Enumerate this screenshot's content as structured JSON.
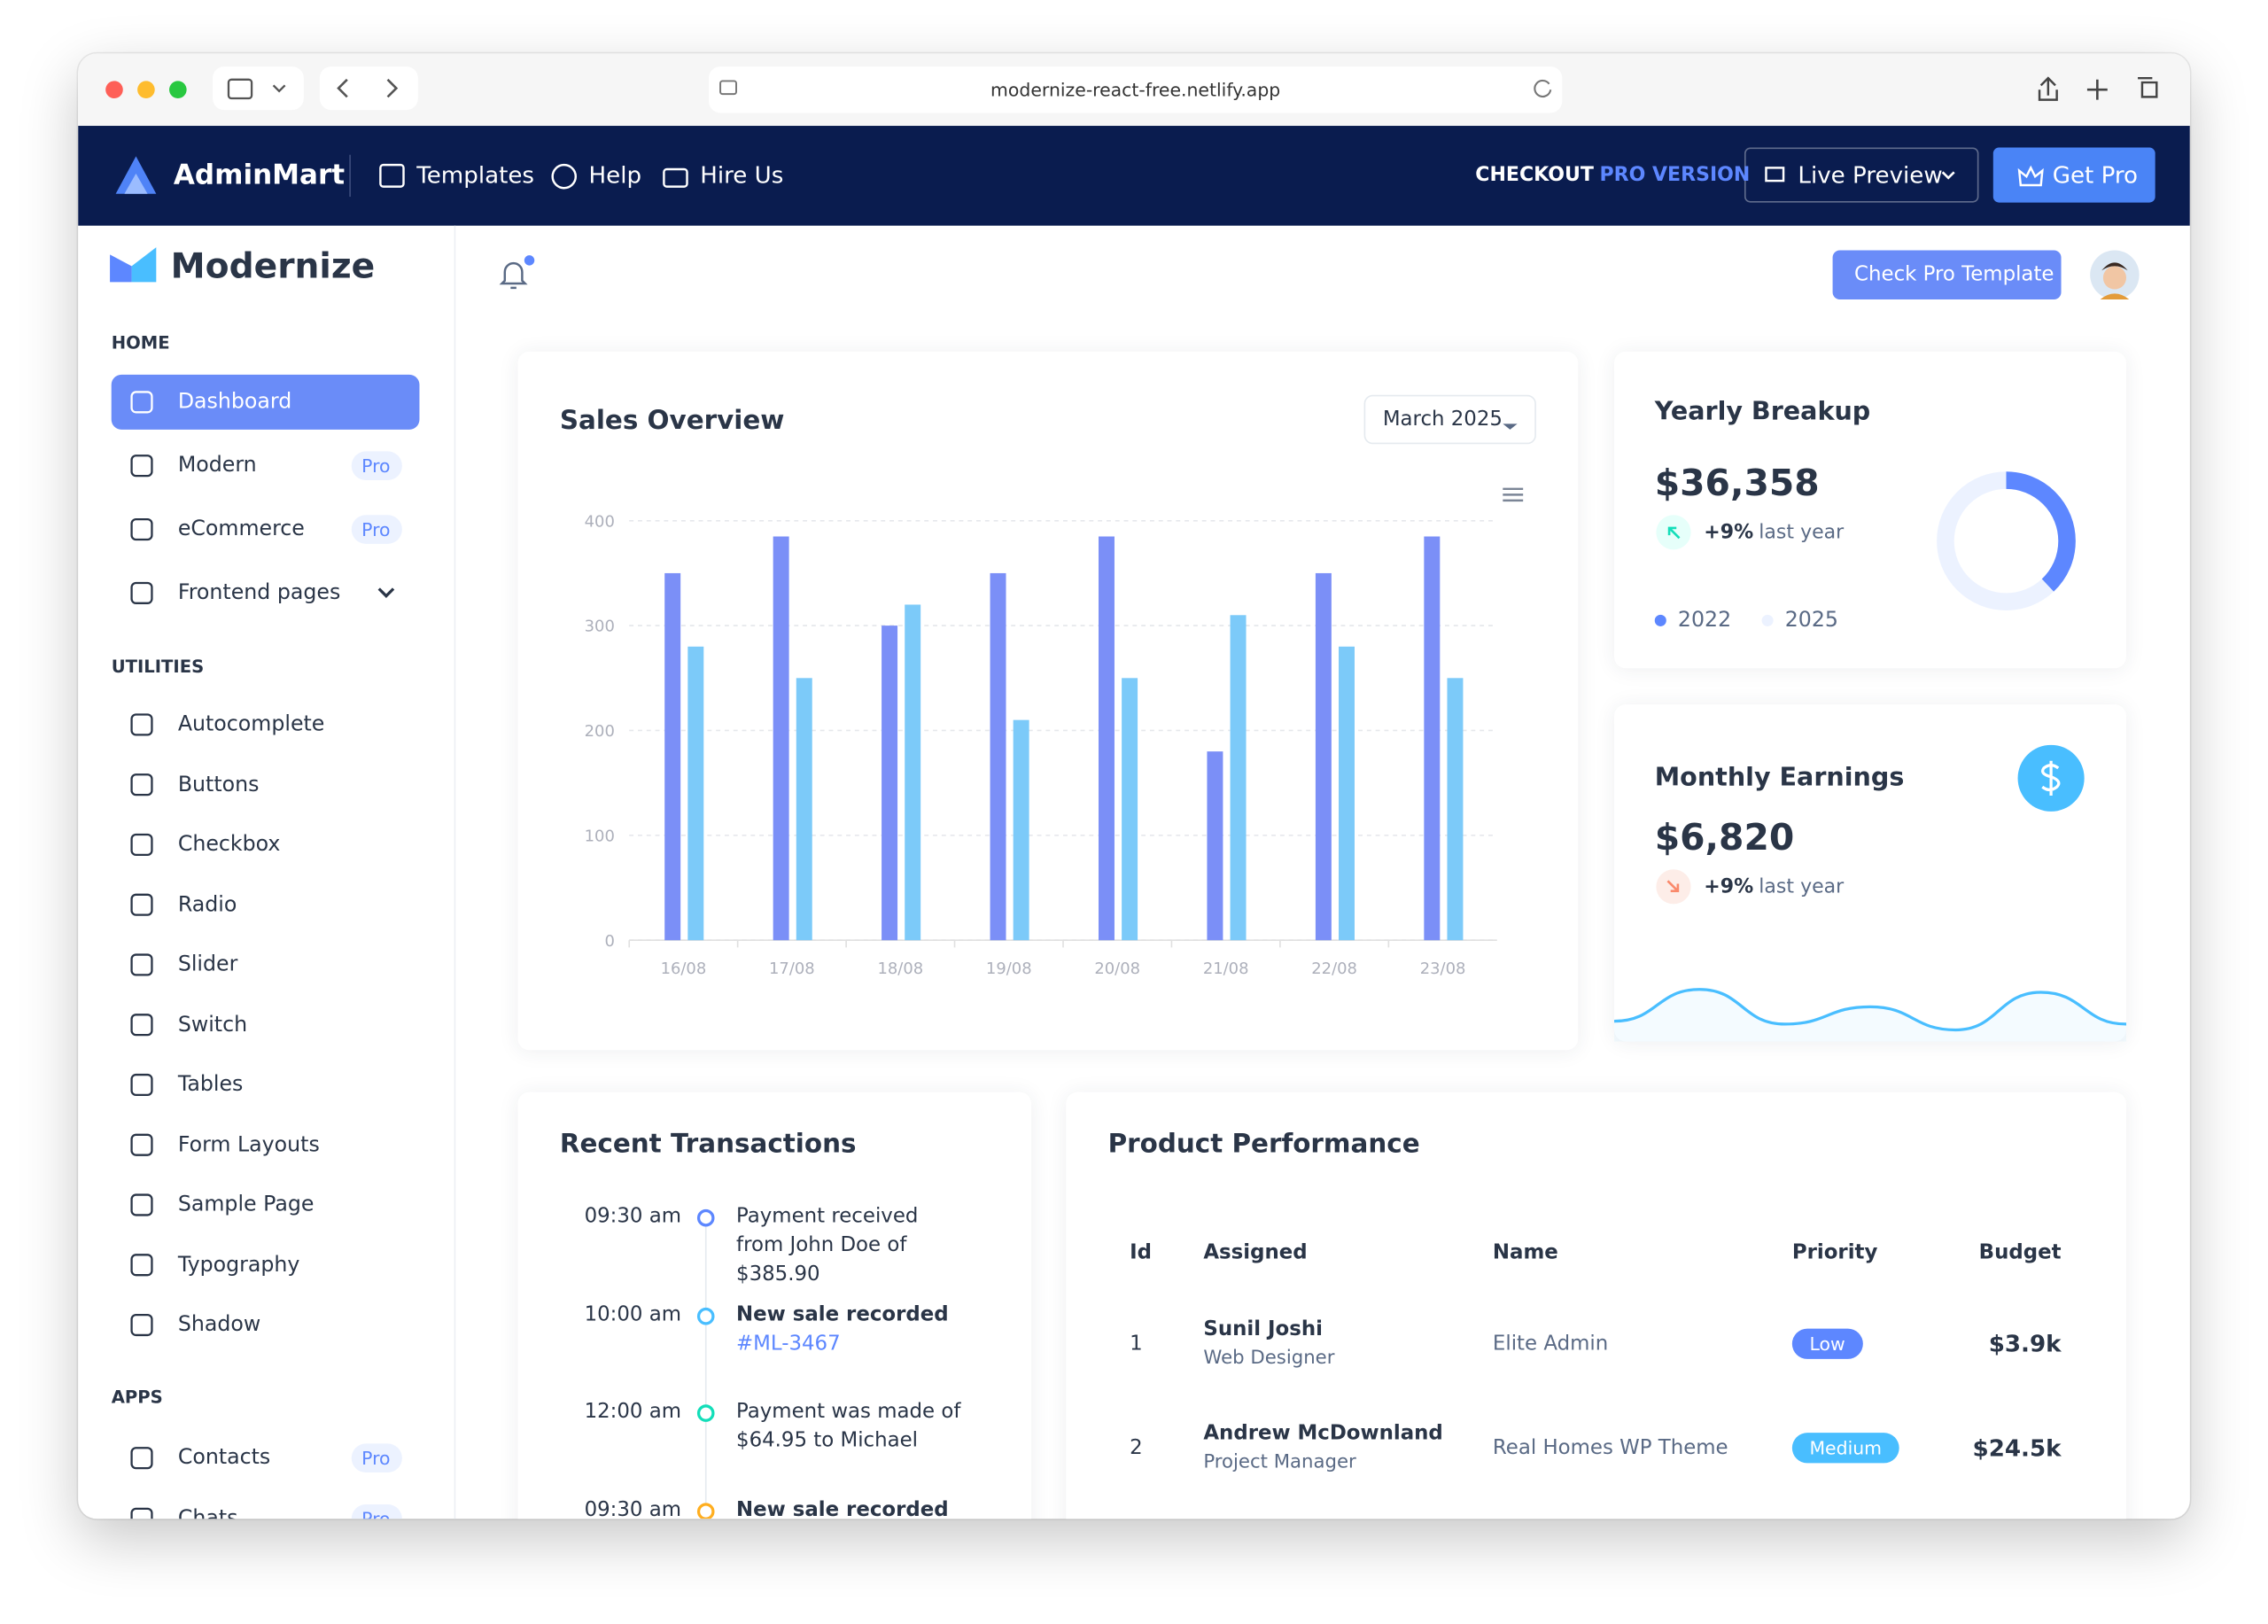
{
  "browser": {
    "url": "modernize-react-free.netlify.app"
  },
  "topbar": {
    "brand": "AdminMart",
    "nav": [
      "Templates",
      "Help",
      "Hire Us"
    ],
    "checkout": "CHECKOUT",
    "pro_version": "PRO VERSION",
    "live_preview": "Live Preview",
    "get_pro": "Get Pro"
  },
  "sidebar": {
    "brand": "Modernize",
    "sections": [
      {
        "title": "HOME",
        "items": [
          {
            "label": "Dashboard"
          },
          {
            "label": "Modern",
            "badge": "Pro"
          },
          {
            "label": "eCommerce",
            "badge": "Pro"
          },
          {
            "label": "Frontend pages"
          }
        ]
      },
      {
        "title": "UTILITIES",
        "items": [
          {
            "label": "Autocomplete"
          },
          {
            "label": "Buttons"
          },
          {
            "label": "Checkbox"
          },
          {
            "label": "Radio"
          },
          {
            "label": "Slider"
          },
          {
            "label": "Switch"
          },
          {
            "label": "Tables"
          },
          {
            "label": "Form Layouts"
          },
          {
            "label": "Sample Page"
          },
          {
            "label": "Typography"
          },
          {
            "label": "Shadow"
          }
        ]
      },
      {
        "title": "APPS",
        "items": [
          {
            "label": "Contacts",
            "badge": "Pro"
          },
          {
            "label": "Chats",
            "badge": "Pro"
          }
        ]
      }
    ]
  },
  "header": {
    "cta": "Check Pro Template"
  },
  "sales_overview": {
    "title": "Sales Overview",
    "period": "March 2025"
  },
  "chart_data": {
    "type": "bar",
    "categories": [
      "16/08",
      "17/08",
      "18/08",
      "19/08",
      "20/08",
      "21/08",
      "22/08",
      "23/08"
    ],
    "series": [
      {
        "color": "#7b8ff7",
        "values": [
          350,
          385,
          300,
          350,
          385,
          180,
          350,
          385
        ]
      },
      {
        "color": "#7ccaf9",
        "values": [
          280,
          250,
          320,
          210,
          250,
          310,
          280,
          250
        ]
      }
    ],
    "ylim": [
      0,
      400
    ],
    "yticks": [
      0,
      100,
      200,
      300,
      400
    ],
    "grid": true
  },
  "yearly_breakup": {
    "title": "Yearly Breakup",
    "amount": "$36,358",
    "change": "+9%",
    "period": "last year",
    "legend": [
      {
        "label": "2022",
        "value": 38,
        "color": "#5d87ff"
      },
      {
        "label": "2025",
        "value": 62,
        "color": "#ecf2ff"
      }
    ]
  },
  "monthly_earnings": {
    "title": "Monthly Earnings",
    "amount": "$6,820",
    "change": "+9%",
    "period": "last year",
    "sparkline": [
      28,
      72,
      24,
      48,
      16,
      68,
      24
    ],
    "color": "#49beff"
  },
  "transactions": {
    "title": "Recent Transactions",
    "items": [
      {
        "time": "09:30 am",
        "text": "Payment received from John Doe of $385.90",
        "color": "#5d87ff"
      },
      {
        "time": "10:00 am",
        "text": "New sale recorded",
        "link": "#ML-3467",
        "color": "#49beff"
      },
      {
        "time": "12:00 am",
        "text": "Payment was made of $64.95 to Michael",
        "color": "#13deb9"
      },
      {
        "time": "09:30 am",
        "text": "New sale recorded",
        "color": "#ffae1f"
      }
    ]
  },
  "products": {
    "title": "Product Performance",
    "columns": [
      "Id",
      "Assigned",
      "Name",
      "Priority",
      "Budget"
    ],
    "rows": [
      {
        "id": "1",
        "assigned": "Sunil Joshi",
        "role": "Web Designer",
        "name": "Elite Admin",
        "priority": "Low",
        "priority_color": "#5d87ff",
        "budget": "$3.9k"
      },
      {
        "id": "2",
        "assigned": "Andrew McDownland",
        "role": "Project Manager",
        "name": "Real Homes WP Theme",
        "priority": "Medium",
        "priority_color": "#49beff",
        "budget": "$24.5k"
      }
    ]
  }
}
